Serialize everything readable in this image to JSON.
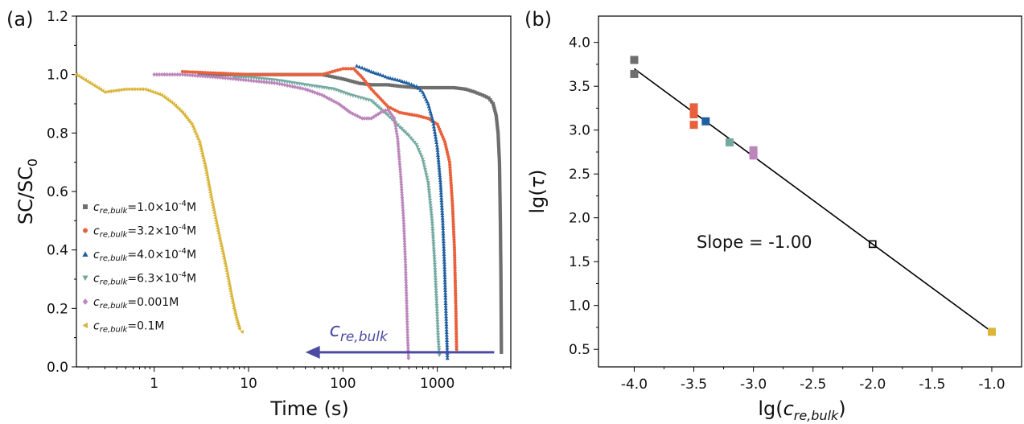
{
  "panels": {
    "a": "(a)",
    "b": "(b)"
  },
  "chart_data": [
    {
      "id": "a",
      "type": "scatter",
      "xscale": "log",
      "xlim": [
        0.15,
        6000
      ],
      "ylim": [
        0.0,
        1.2
      ],
      "xticks": [
        1,
        10,
        100,
        1000
      ],
      "xtick_labels": [
        "1",
        "10",
        "100",
        "1000"
      ],
      "yticks": [
        0.0,
        0.2,
        0.4,
        0.6,
        0.8,
        1.0,
        1.2
      ],
      "ytick_labels": [
        "0.0",
        "0.2",
        "0.4",
        "0.6",
        "0.8",
        "1.0",
        "1.2"
      ],
      "xlabel": "Time (s)",
      "ylabel": "SC/SC",
      "ylabel_sub": "0",
      "legend_position": "lower-left",
      "grid": false,
      "series": [
        {
          "label_prefix": "c",
          "label_sub": "re,bulk",
          "label_suffix": "=1.0×10",
          "label_sup": "-4",
          "label_unit": "M",
          "color": "#6e6e6e",
          "marker": "square",
          "x": [
            3,
            10,
            30,
            60,
            100,
            150,
            200,
            300,
            400,
            600,
            800,
            1000,
            1500,
            2000,
            2500,
            3000,
            3500,
            3900,
            4200,
            4400,
            4550,
            4650,
            4720,
            4770
          ],
          "y": [
            1.0,
            1.0,
            1.0,
            1.0,
            0.985,
            0.97,
            0.965,
            0.965,
            0.96,
            0.955,
            0.955,
            0.955,
            0.955,
            0.95,
            0.94,
            0.93,
            0.92,
            0.9,
            0.86,
            0.8,
            0.7,
            0.5,
            0.3,
            0.05
          ]
        },
        {
          "label_prefix": "c",
          "label_sub": "re,bulk",
          "label_suffix": "=3.2×10",
          "label_sup": "-4",
          "label_unit": "M",
          "color": "#e8613c",
          "marker": "circle",
          "x": [
            2,
            10,
            30,
            60,
            100,
            130,
            160,
            200,
            300,
            400,
            600,
            800,
            1000,
            1200,
            1350,
            1450,
            1520,
            1570,
            1600
          ],
          "y": [
            1.01,
            1.0,
            1.0,
            1.0,
            1.02,
            1.02,
            0.99,
            0.95,
            0.89,
            0.87,
            0.86,
            0.85,
            0.83,
            0.77,
            0.7,
            0.55,
            0.4,
            0.2,
            0.06
          ]
        },
        {
          "label_prefix": "c",
          "label_sub": "re,bulk",
          "label_suffix": "=4.0×10",
          "label_sup": "-4",
          "label_unit": "M",
          "color": "#1f5fa0",
          "marker": "triangle-up",
          "x": [
            140,
            170,
            200,
            250,
            300,
            400,
            500,
            600,
            700,
            800,
            900,
            1000,
            1080,
            1140,
            1190,
            1230,
            1260,
            1280
          ],
          "y": [
            1.03,
            1.02,
            1.01,
            1.0,
            0.99,
            0.98,
            0.97,
            0.96,
            0.94,
            0.9,
            0.84,
            0.75,
            0.63,
            0.5,
            0.35,
            0.2,
            0.1,
            0.03
          ]
        },
        {
          "label_prefix": "c",
          "label_sub": "re,bulk",
          "label_suffix": "=6.3×10",
          "label_sup": "-4",
          "label_unit": "M",
          "color": "#73a9a0",
          "marker": "triangle-down",
          "x": [
            7,
            10,
            20,
            50,
            80,
            120,
            200,
            300,
            400,
            500,
            600,
            700,
            800,
            880,
            940,
            990,
            1020,
            1050
          ],
          "y": [
            0.99,
            0.99,
            0.98,
            0.96,
            0.95,
            0.93,
            0.91,
            0.86,
            0.82,
            0.79,
            0.76,
            0.71,
            0.63,
            0.5,
            0.35,
            0.2,
            0.1,
            0.04
          ]
        },
        {
          "label_prefix": "c",
          "label_sub": "re,bulk",
          "label_suffix": "=0.001M",
          "label_sup": "",
          "label_unit": "",
          "color": "#bb86bb",
          "marker": "diamond",
          "x": [
            1,
            2,
            5,
            10,
            20,
            40,
            60,
            90,
            120,
            160,
            200,
            250,
            300,
            350,
            380,
            410,
            440,
            460,
            475,
            485,
            495
          ],
          "y": [
            1.0,
            1.0,
            0.99,
            0.98,
            0.97,
            0.95,
            0.93,
            0.9,
            0.87,
            0.85,
            0.85,
            0.87,
            0.88,
            0.85,
            0.78,
            0.65,
            0.5,
            0.35,
            0.2,
            0.1,
            0.03
          ]
        },
        {
          "label_prefix": "c",
          "label_sub": "re,bulk",
          "label_suffix": "=0.1M",
          "label_sup": "",
          "label_unit": "",
          "color": "#d9b53a",
          "marker": "triangle-left",
          "x": [
            0.15,
            0.3,
            0.5,
            0.8,
            1.2,
            1.6,
            2.0,
            2.5,
            3.0,
            3.5,
            4.0,
            4.5,
            5.0,
            5.5,
            6.0,
            6.5,
            7.0,
            7.5,
            8.0,
            8.5
          ],
          "y": [
            1.0,
            0.94,
            0.95,
            0.95,
            0.93,
            0.9,
            0.87,
            0.83,
            0.77,
            0.68,
            0.58,
            0.5,
            0.43,
            0.37,
            0.31,
            0.25,
            0.2,
            0.16,
            0.13,
            0.12
          ]
        }
      ],
      "annotation": {
        "prefix": "c",
        "sub": "re,bulk",
        "arrow_color": "#4b4ba3",
        "arrow_direction": "toward-lower-values",
        "arrow_y": 0.05,
        "arrow_x": [
          4000,
          40
        ]
      }
    },
    {
      "id": "b",
      "type": "scatter",
      "xlim": [
        -4.3,
        -0.75
      ],
      "ylim": [
        0.3,
        4.3
      ],
      "xticks": [
        -4.0,
        -3.5,
        -3.0,
        -2.5,
        -2.0,
        -1.5,
        -1.0
      ],
      "xtick_labels": [
        "-4.0",
        "-3.5",
        "-3.0",
        "-2.5",
        "-2.0",
        "-1.5",
        "-1.0"
      ],
      "yticks": [
        0.5,
        1.0,
        1.5,
        2.0,
        2.5,
        3.0,
        3.5,
        4.0
      ],
      "ytick_labels": [
        "0.5",
        "1.0",
        "1.5",
        "2.0",
        "2.5",
        "3.0",
        "3.5",
        "4.0"
      ],
      "xlabel_prefix": "lg(",
      "xlabel_var": "c",
      "xlabel_sub": "re,bulk",
      "xlabel_suffix": ")",
      "ylabel_prefix": "lg(",
      "ylabel_var": "τ",
      "ylabel_suffix": ")",
      "grid": false,
      "fit_line": {
        "x": [
          -4.0,
          -1.0
        ],
        "y": [
          3.7,
          0.7
        ],
        "color": "#000000"
      },
      "annotation_text": "Slope = -1.00",
      "points": [
        {
          "x": -4.0,
          "y": 3.8,
          "color": "#6e6e6e",
          "filled": true
        },
        {
          "x": -4.0,
          "y": 3.64,
          "color": "#6e6e6e",
          "filled": true
        },
        {
          "x": -3.5,
          "y": 3.26,
          "color": "#e8613c",
          "filled": true
        },
        {
          "x": -3.5,
          "y": 3.18,
          "color": "#e8613c",
          "filled": true
        },
        {
          "x": -3.5,
          "y": 3.06,
          "color": "#e8613c",
          "filled": true
        },
        {
          "x": -3.4,
          "y": 3.1,
          "color": "#1f5fa0",
          "filled": true
        },
        {
          "x": -3.2,
          "y": 2.86,
          "color": "#73a9a0",
          "filled": true
        },
        {
          "x": -3.0,
          "y": 2.77,
          "color": "#bb86bb",
          "filled": true
        },
        {
          "x": -3.0,
          "y": 2.71,
          "color": "#bb86bb",
          "filled": true
        },
        {
          "x": -2.0,
          "y": 1.7,
          "color": "#000000",
          "filled": false
        },
        {
          "x": -1.0,
          "y": 0.7,
          "color": "#d9b53a",
          "filled": true
        }
      ]
    }
  ]
}
